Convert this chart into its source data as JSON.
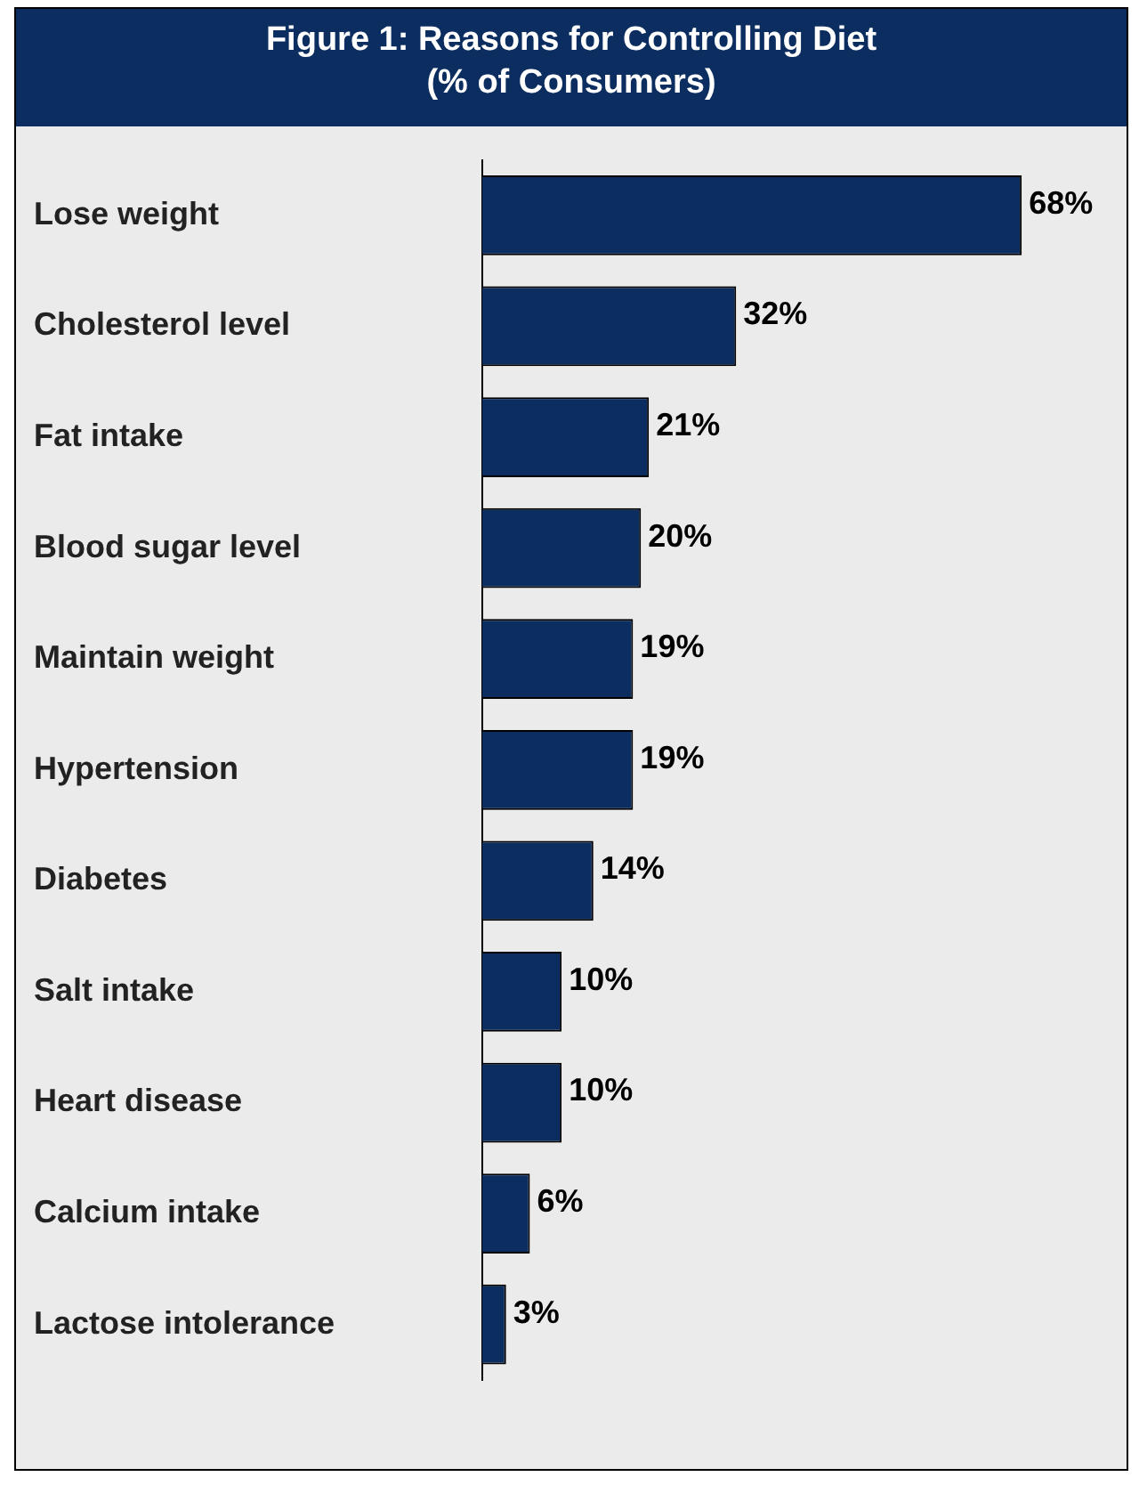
{
  "chart_data": {
    "type": "bar",
    "orientation": "horizontal",
    "title": "Figure 1: Reasons for Controlling Diet\n(% of Consumers)",
    "categories": [
      "Lose weight",
      "Cholesterol level",
      "Fat intake",
      "Blood sugar level",
      "Maintain weight",
      "Hypertension",
      "Diabetes",
      "Salt intake",
      "Heart disease",
      "Calcium intake",
      "Lactose intolerance"
    ],
    "values": [
      68,
      32,
      21,
      20,
      19,
      19,
      14,
      10,
      10,
      6,
      3
    ],
    "value_labels": [
      "68%",
      "32%",
      "21%",
      "20%",
      "19%",
      "19%",
      "14%",
      "10%",
      "10%",
      "6%",
      "3%"
    ],
    "color": "#0c2d5f",
    "legend": false,
    "tick_labels": "y"
  }
}
